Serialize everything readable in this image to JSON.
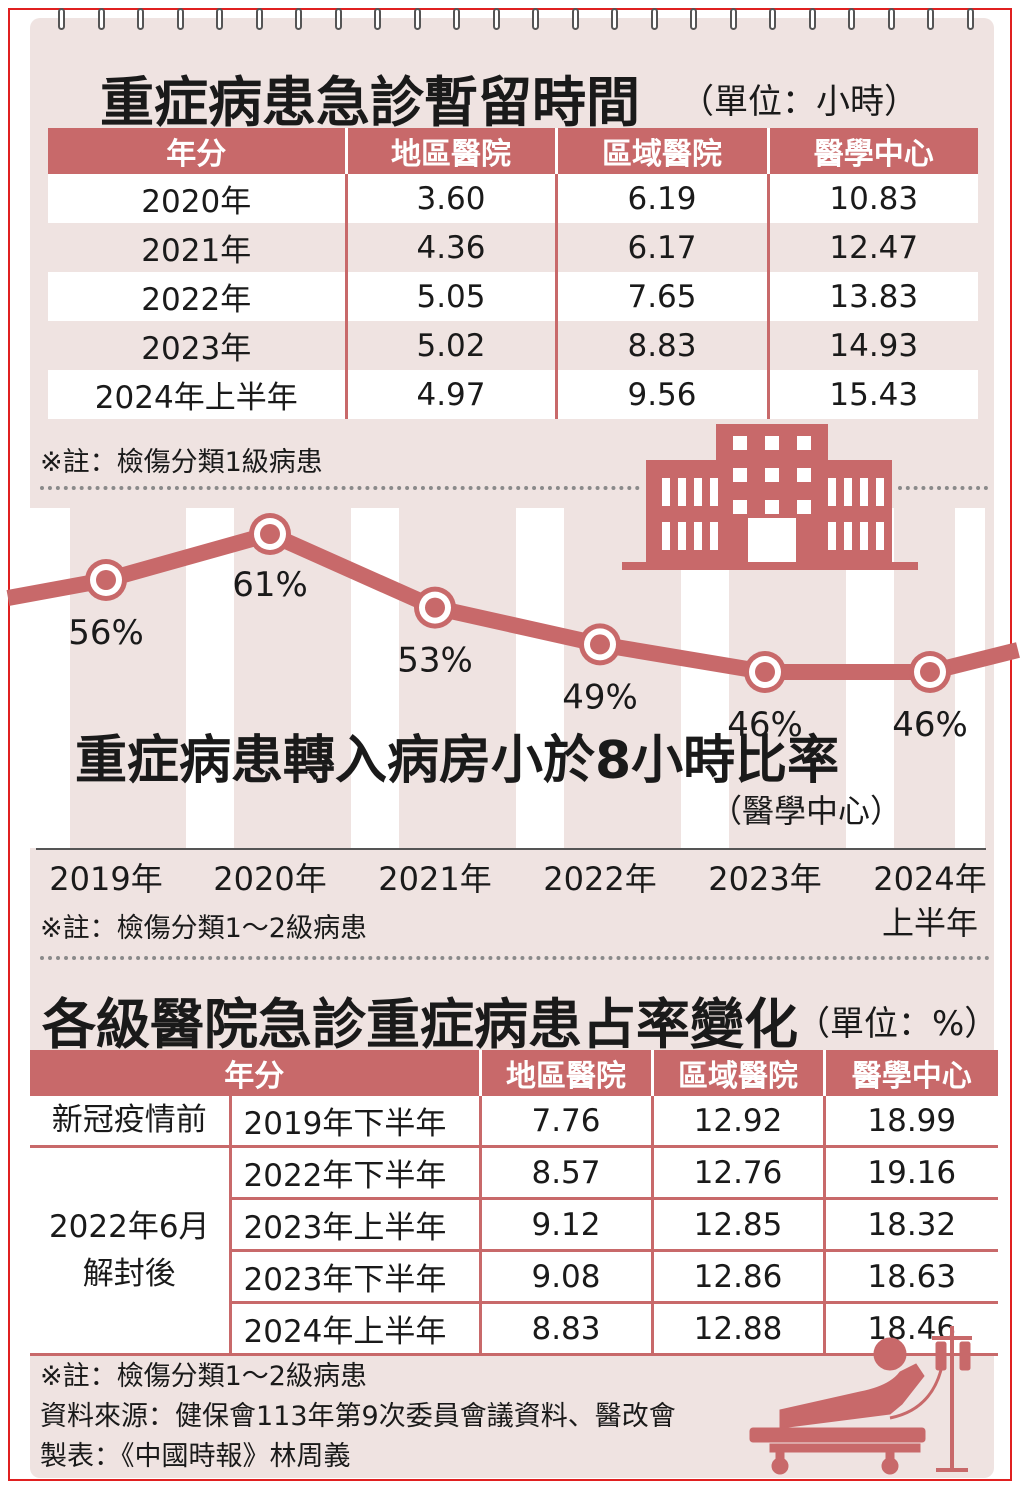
{
  "table1": {
    "title": "重症病患急診暫留時間",
    "unit": "（單位：小時）",
    "headers": [
      "年分",
      "地區醫院",
      "區域醫院",
      "醫學中心"
    ],
    "rows": [
      [
        "2020年",
        "3.60",
        "6.19",
        "10.83"
      ],
      [
        "2021年",
        "4.36",
        "6.17",
        "12.47"
      ],
      [
        "2022年",
        "5.05",
        "7.65",
        "13.83"
      ],
      [
        "2023年",
        "5.02",
        "8.83",
        "14.93"
      ],
      [
        "2024年上半年",
        "4.97",
        "9.56",
        "15.43"
      ]
    ],
    "note": "※註：檢傷分類1級病患"
  },
  "chart_data": {
    "type": "line",
    "title": "重症病患轉入病房小於8小時比率",
    "subtitle": "（醫學中心）",
    "categories": [
      "2019年",
      "2020年",
      "2021年",
      "2022年",
      "2023年",
      "2024年上半年"
    ],
    "category_lines": [
      [
        "2019年"
      ],
      [
        "2020年"
      ],
      [
        "2021年"
      ],
      [
        "2022年"
      ],
      [
        "2023年"
      ],
      [
        "2024年",
        "上半年"
      ]
    ],
    "values": [
      56,
      61,
      53,
      49,
      46,
      46
    ],
    "value_labels": [
      "56%",
      "61%",
      "53%",
      "49%",
      "46%",
      "46%"
    ],
    "note": "※註：檢傷分類1～2級病患",
    "colors": {
      "line": "#c8696a",
      "stripe": "#ffffff",
      "building": "#c8696a"
    }
  },
  "table2": {
    "title": "各級醫院急診重症病患占率變化",
    "unit": "（單位：%）",
    "headers": [
      "年分",
      "地區醫院",
      "區域醫院",
      "醫學中心"
    ],
    "groups": [
      {
        "label": "新冠疫情前",
        "rows": [
          [
            "2019年下半年",
            "7.76",
            "12.92",
            "18.99"
          ]
        ]
      },
      {
        "label": "2022年6月\n解封後",
        "rows": [
          [
            "2022年下半年",
            "8.57",
            "12.76",
            "19.16"
          ],
          [
            "2023年上半年",
            "9.12",
            "12.85",
            "18.32"
          ],
          [
            "2023年下半年",
            "9.08",
            "12.86",
            "18.63"
          ],
          [
            "2024年上半年",
            "8.83",
            "12.88",
            "18.46"
          ]
        ]
      }
    ]
  },
  "footer": {
    "note": "※註：檢傷分類1～2級病患",
    "source": "資料來源：健保會113年第9次委員會議資料、醫改會",
    "credit": "製表：《中國時報》林周義"
  },
  "colors": {
    "accent": "#c8696a",
    "background": "#efe3e1",
    "border": "#e02020"
  },
  "icons": [
    "binder-ring-icon",
    "hospital-building-icon",
    "hospital-bed-patient-icon"
  ]
}
